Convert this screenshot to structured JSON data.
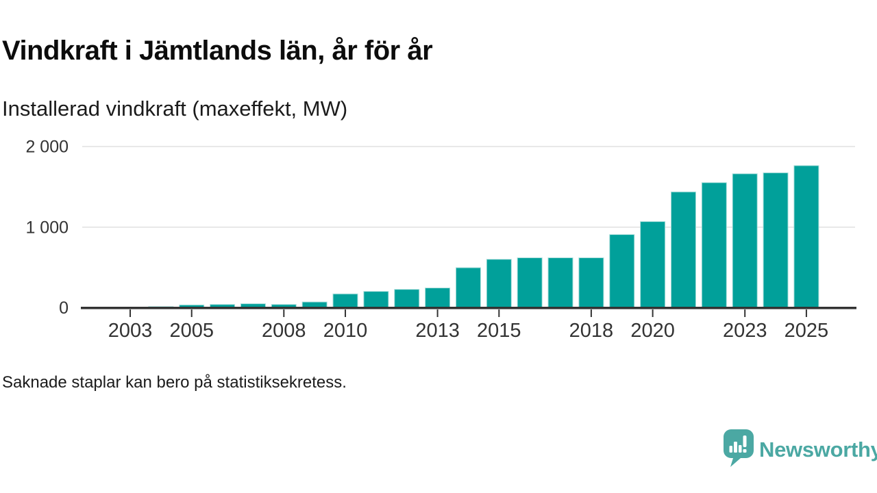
{
  "chart_data": {
    "type": "bar",
    "title": "Vindkraft i Jämtlands län, år för år",
    "subtitle": "Installerad vindkraft (maxeffekt, MW)",
    "ylabel": "MW",
    "categories": [
      2003,
      2004,
      2005,
      2006,
      2007,
      2008,
      2009,
      2010,
      2011,
      2012,
      2013,
      2014,
      2015,
      2016,
      2017,
      2018,
      2019,
      2020,
      2021,
      2022,
      2023,
      2024,
      2025
    ],
    "values": [
      null,
      15,
      35,
      41,
      50,
      41,
      72,
      172,
      203,
      228,
      246,
      497,
      601,
      620,
      620,
      620,
      908,
      1069,
      1437,
      1552,
      1662,
      1674,
      1763
    ],
    "ylim": [
      0,
      2000
    ],
    "yticks": [
      {
        "value": 0,
        "label": "0"
      },
      {
        "value": 1000,
        "label": "1 000"
      },
      {
        "value": 2000,
        "label": "2 000"
      }
    ],
    "xtick_years": [
      2003,
      2005,
      2008,
      2010,
      2013,
      2015,
      2018,
      2020,
      2023,
      2025
    ],
    "grid": true,
    "legend": "none",
    "bar_color": "#01a09a",
    "bar_edge_color": "#a9ddda",
    "axis_color": "#333333",
    "gridline_color": "#e0e0e0",
    "note": "Saknade staplar kan bero på statistiksekretess."
  },
  "branding": {
    "name": "Newsworthy",
    "color": "#4ba8a3",
    "icon": "newsworthy-speech-bubble-chart-icon"
  }
}
